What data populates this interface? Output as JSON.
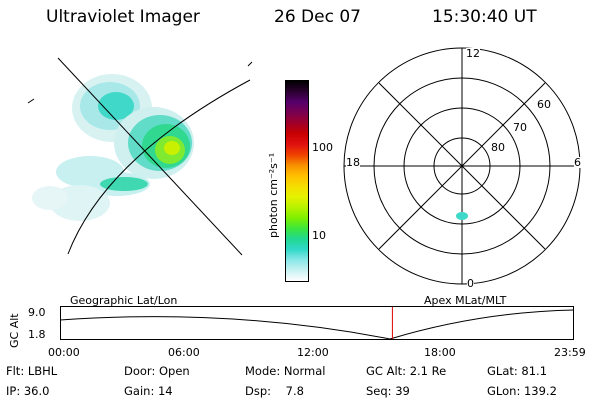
{
  "header": {
    "title": "Ultraviolet Imager",
    "date": "26 Dec 07",
    "time": "15:30:40 UT"
  },
  "colorbar": {
    "label": "photon cm⁻²s⁻¹",
    "ticks": [
      "100",
      "10"
    ],
    "colors": [
      "#000000",
      "#2a0030",
      "#55006a",
      "#7a0050",
      "#a00028",
      "#c80000",
      "#e01010",
      "#ef4000",
      "#f79000",
      "#ffbf00",
      "#f5dd00",
      "#e6f200",
      "#b8f200",
      "#7fef00",
      "#3ce63c",
      "#20d890",
      "#30d8c8",
      "#8ae8e8",
      "#c8f2f2",
      "#ffffff"
    ]
  },
  "polar": {
    "mlt_labels": {
      "top": "12",
      "left": "18",
      "right": "6",
      "bottom": "0"
    },
    "lat_labels": [
      "60",
      "70",
      "80"
    ]
  },
  "timeline": {
    "y_label": "GC Alt",
    "y_ticks": [
      "9.0",
      "1.8"
    ],
    "left_caption": "Geographic Lat/Lon",
    "right_caption": "Apex MLat/MLT",
    "x_ticks": [
      "00:00",
      "06:00",
      "12:00",
      "18:00",
      "23:59"
    ],
    "marker_time": "15:30:40",
    "marker_color": "#e00000"
  },
  "info": {
    "row1": [
      "Flt: LBHL",
      "Door: Open",
      "Mode: Normal",
      "GC Alt: 2.1 Re",
      "GLat: 81.1"
    ],
    "row2": [
      "IP: 36.0",
      "Gain: 14",
      "Dsp:    7.8",
      "Seq: 39",
      "GLon: 139.2"
    ]
  }
}
